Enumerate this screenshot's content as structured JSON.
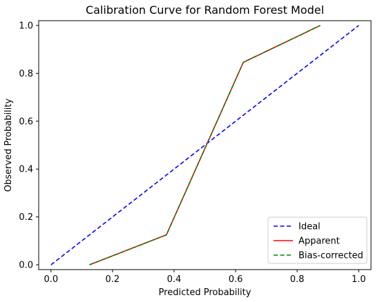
{
  "chart_data": {
    "type": "line",
    "title": "Calibration Curve for Random Forest Model",
    "xlabel": "Predicted Probability",
    "ylabel": "Observed Probability",
    "xlim": [
      -0.04,
      1.04
    ],
    "ylim": [
      -0.02,
      1.02
    ],
    "xticks": [
      "0.0",
      "0.2",
      "0.4",
      "0.6",
      "0.8",
      "1.0"
    ],
    "yticks": [
      "0.0",
      "0.2",
      "0.4",
      "0.6",
      "0.8",
      "1.0"
    ],
    "grid": false,
    "legend_position": "bottom-right",
    "series": [
      {
        "name": "Ideal",
        "color": "#0000ff",
        "style": "dashed",
        "x": [
          0.0,
          1.0
        ],
        "y": [
          0.0,
          1.0
        ]
      },
      {
        "name": "Apparent",
        "color": "#ff0000",
        "style": "solid",
        "x": [
          0.125,
          0.375,
          0.625,
          0.875
        ],
        "y": [
          0.0,
          0.125,
          0.846,
          1.0
        ]
      },
      {
        "name": "Bias-corrected",
        "color": "#008000",
        "style": "dashed",
        "x": [
          0.125,
          0.375,
          0.625,
          0.875
        ],
        "y": [
          0.0,
          0.125,
          0.846,
          1.0
        ]
      }
    ]
  }
}
